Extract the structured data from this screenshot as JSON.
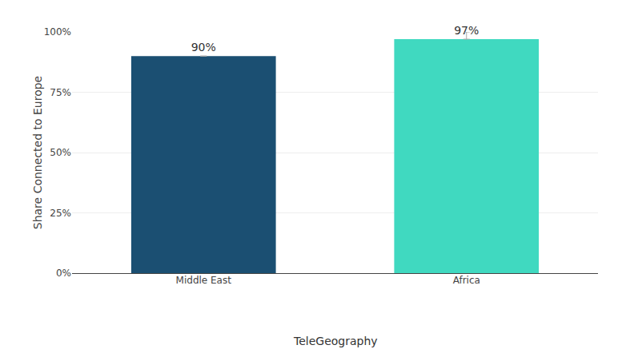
{
  "chart_data": {
    "type": "bar",
    "categories": [
      "Middle East",
      "Africa"
    ],
    "values": [
      90,
      97
    ],
    "value_labels": [
      "90%",
      "97%"
    ],
    "data_labels": true,
    "colors": [
      "#1b4f72",
      "#40d9c0"
    ],
    "error_plus": [
      null,
      3
    ],
    "error_minus": [
      null,
      0
    ],
    "ylabel": "Share Connected to Europe",
    "ylim": [
      0,
      100
    ],
    "yticks": [
      {
        "value": 0,
        "label": "0%"
      },
      {
        "value": 25,
        "label": "25%"
      },
      {
        "value": 50,
        "label": "50%"
      },
      {
        "value": 75,
        "label": "75%"
      },
      {
        "value": 100,
        "label": "100%"
      }
    ],
    "grid": true,
    "annotations": [
      "TeleGeography"
    ]
  }
}
